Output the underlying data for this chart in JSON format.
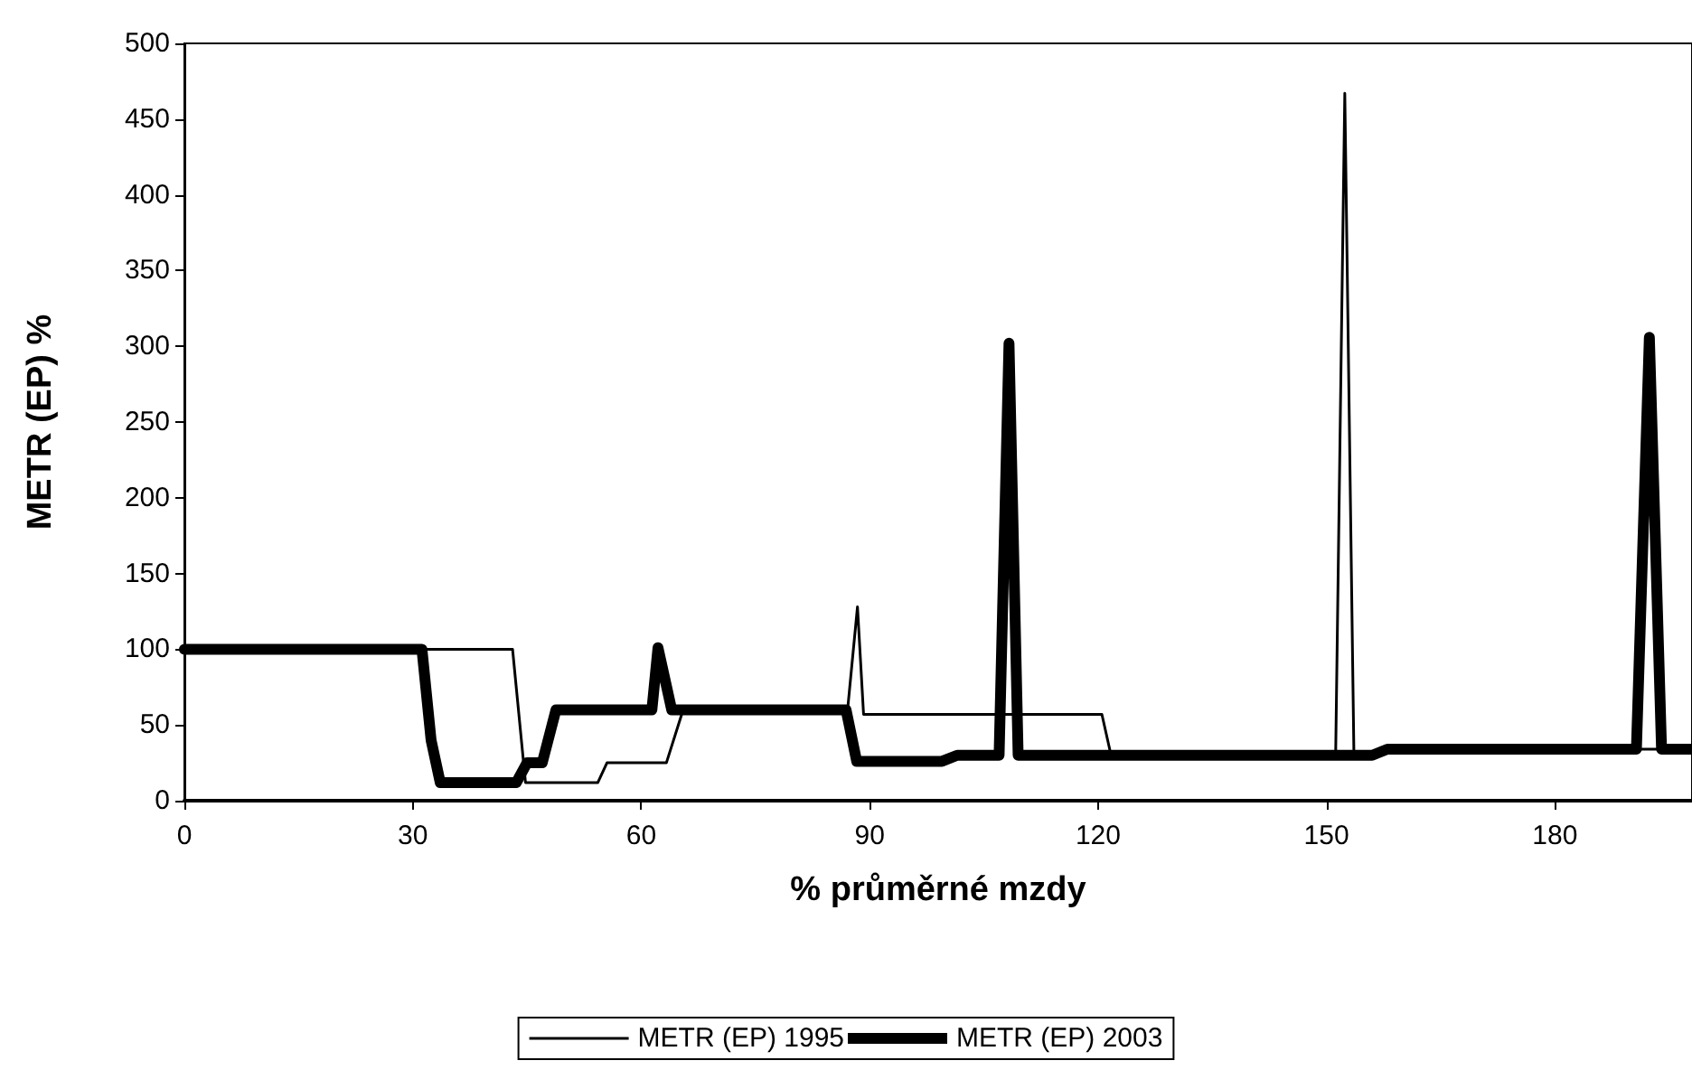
{
  "chart_data": {
    "type": "line",
    "xlabel": "% průměrné mzdy",
    "ylabel": "METR (EP) %",
    "xlim": [
      0,
      198
    ],
    "xticks": [
      0,
      30,
      60,
      90,
      120,
      150,
      180
    ],
    "ylim": [
      0,
      500
    ],
    "yticks": [
      0,
      50,
      100,
      150,
      200,
      250,
      300,
      350,
      400,
      450,
      500
    ],
    "grid": false,
    "legend": "bottom",
    "marker": "none",
    "line_style": "solid",
    "series": [
      {
        "name": "METR (EP) 1995",
        "color": "#000000",
        "x": [
          0,
          43.1,
          44.8,
          54.3,
          55.5,
          63.3,
          65.5,
          87.1,
          88.4,
          89.2,
          120.5,
          121.7,
          151.2,
          152.4,
          153.6,
          156,
          158,
          198
        ],
        "values": [
          100,
          100,
          12,
          12,
          25,
          25,
          60,
          60,
          128,
          57,
          57,
          30,
          30,
          467,
          30,
          30,
          34,
          34
        ]
      },
      {
        "name": "METR (EP) 2003",
        "color": "#000000",
        "x": [
          0,
          31.2,
          32.4,
          33.6,
          43.6,
          45,
          47,
          48.8,
          61.4,
          62.2,
          64,
          86.9,
          88.3,
          99.5,
          101.5,
          107,
          108.3,
          109.5,
          156,
          158,
          190.7,
          192.4,
          194,
          198
        ],
        "values": [
          100,
          100,
          40,
          12,
          12,
          25,
          25,
          60,
          60,
          101,
          60,
          60,
          26,
          26,
          30,
          30,
          302,
          30,
          30,
          34,
          34,
          306,
          34,
          34
        ]
      }
    ]
  }
}
